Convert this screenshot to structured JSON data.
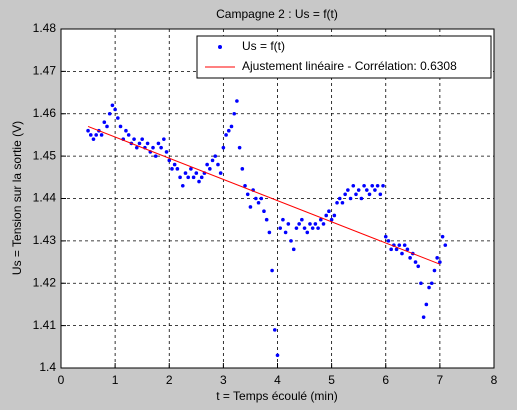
{
  "chart_data": {
    "type": "scatter",
    "title": "Campagne 2 : Us = f(t)",
    "x_label": "t = Temps écoulé (min)",
    "y_label": "Us = Tension sur la sortie (V)",
    "xlim": [
      0,
      8
    ],
    "xticks": [
      0,
      1,
      2,
      3,
      4,
      5,
      6,
      7,
      8
    ],
    "ylim": [
      1.4,
      1.48
    ],
    "yticks": [
      1.4,
      1.41,
      1.42,
      1.43,
      1.44,
      1.45,
      1.46,
      1.47,
      1.48
    ],
    "grid": true,
    "legend": "top-right",
    "series": [
      {
        "name": "Us = f(t)",
        "color": "#0000ff",
        "style": "markers",
        "x": [
          0.5,
          0.55,
          0.6,
          0.65,
          0.7,
          0.75,
          0.8,
          0.85,
          0.9,
          0.95,
          1.0,
          1.05,
          1.1,
          1.15,
          1.2,
          1.25,
          1.3,
          1.35,
          1.4,
          1.45,
          1.5,
          1.55,
          1.6,
          1.65,
          1.7,
          1.75,
          1.8,
          1.85,
          1.9,
          1.95,
          2.0,
          2.05,
          2.1,
          2.15,
          2.2,
          2.25,
          2.3,
          2.35,
          2.4,
          2.45,
          2.5,
          2.55,
          2.6,
          2.65,
          2.7,
          2.75,
          2.8,
          2.85,
          2.9,
          2.95,
          3.0,
          3.05,
          3.1,
          3.15,
          3.2,
          3.25,
          3.3,
          3.35,
          3.4,
          3.45,
          3.5,
          3.55,
          3.6,
          3.65,
          3.7,
          3.75,
          3.8,
          3.85,
          3.9,
          3.95,
          4.0,
          4.05,
          4.1,
          4.15,
          4.2,
          4.25,
          4.3,
          4.35,
          4.4,
          4.45,
          4.5,
          4.55,
          4.6,
          4.65,
          4.7,
          4.75,
          4.8,
          4.85,
          4.9,
          4.95,
          5.0,
          5.05,
          5.1,
          5.15,
          5.2,
          5.25,
          5.3,
          5.35,
          5.4,
          5.45,
          5.5,
          5.55,
          5.6,
          5.65,
          5.7,
          5.75,
          5.8,
          5.85,
          5.9,
          5.95,
          6.0,
          6.05,
          6.1,
          6.15,
          6.2,
          6.25,
          6.3,
          6.35,
          6.4,
          6.45,
          6.5,
          6.55,
          6.6,
          6.65,
          6.7,
          6.75,
          6.8,
          6.85,
          6.9,
          6.95,
          7.0,
          7.05,
          7.1
        ],
        "values": [
          1.456,
          1.455,
          1.454,
          1.455,
          1.456,
          1.455,
          1.458,
          1.457,
          1.46,
          1.462,
          1.461,
          1.459,
          1.457,
          1.454,
          1.456,
          1.455,
          1.453,
          1.454,
          1.452,
          1.453,
          1.454,
          1.452,
          1.453,
          1.451,
          1.452,
          1.45,
          1.453,
          1.452,
          1.454,
          1.451,
          1.449,
          1.447,
          1.448,
          1.447,
          1.445,
          1.443,
          1.446,
          1.445,
          1.447,
          1.445,
          1.446,
          1.444,
          1.445,
          1.446,
          1.448,
          1.447,
          1.449,
          1.45,
          1.448,
          1.446,
          1.452,
          1.455,
          1.456,
          1.457,
          1.46,
          1.463,
          1.452,
          1.447,
          1.443,
          1.441,
          1.438,
          1.442,
          1.44,
          1.439,
          1.44,
          1.437,
          1.435,
          1.432,
          1.423,
          1.409,
          1.403,
          1.433,
          1.435,
          1.432,
          1.434,
          1.43,
          1.428,
          1.433,
          1.434,
          1.435,
          1.433,
          1.432,
          1.434,
          1.433,
          1.434,
          1.433,
          1.435,
          1.434,
          1.436,
          1.437,
          1.435,
          1.436,
          1.439,
          1.44,
          1.439,
          1.441,
          1.442,
          1.44,
          1.443,
          1.441,
          1.442,
          1.44,
          1.443,
          1.442,
          1.441,
          1.443,
          1.442,
          1.443,
          1.441,
          1.443,
          1.431,
          1.43,
          1.428,
          1.429,
          1.428,
          1.429,
          1.427,
          1.429,
          1.428,
          1.426,
          1.427,
          1.425,
          1.424,
          1.42,
          1.412,
          1.415,
          1.419,
          1.42,
          1.423,
          1.426,
          1.425,
          1.431,
          1.429
        ]
      },
      {
        "name": "Ajustement linéaire - Corrélation: 0.6308",
        "color": "#ff0000",
        "style": "line",
        "x": [
          0.5,
          7.0
        ],
        "values": [
          1.457,
          1.4245
        ]
      }
    ]
  }
}
